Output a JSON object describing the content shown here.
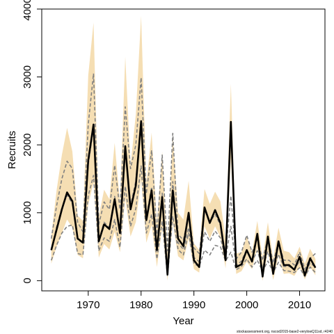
{
  "chart_data": {
    "type": "line",
    "xlabel": "Year",
    "ylabel": "Recruits",
    "xlim": [
      1961.2,
      2014.8
    ],
    "ylim": [
      -150,
      4000
    ],
    "xticks": [
      1970,
      1980,
      1990,
      2000,
      2010
    ],
    "yticks": [
      0,
      1000,
      2000,
      3000,
      4000
    ],
    "grid": false,
    "footnote": "stockassessment.org,  nscod2015-base2-verylowQ11sd, r4240",
    "colors": {
      "band": "#f5deb3",
      "main": "#000000",
      "dashed": "#808080"
    },
    "x": [
      1963,
      1964,
      1965,
      1966,
      1967,
      1968,
      1969,
      1970,
      1971,
      1972,
      1973,
      1974,
      1975,
      1976,
      1977,
      1978,
      1979,
      1980,
      1981,
      1982,
      1983,
      1984,
      1985,
      1986,
      1987,
      1988,
      1989,
      1990,
      1991,
      1992,
      1993,
      1994,
      1995,
      1996,
      1997,
      1998,
      1999,
      2000,
      2001,
      2002,
      2003,
      2004,
      2005,
      2006,
      2007,
      2008,
      2009,
      2010,
      2011,
      2012,
      2013
    ],
    "series": [
      {
        "role": "estimate",
        "style": "solid-thick",
        "values": [
          450,
          750,
          1050,
          1300,
          1170,
          620,
          560,
          1770,
          2300,
          580,
          830,
          760,
          1200,
          700,
          1980,
          1050,
          1400,
          2350,
          890,
          1330,
          450,
          1230,
          90,
          1330,
          620,
          510,
          1000,
          300,
          200,
          1080,
          850,
          1040,
          850,
          300,
          2340,
          200,
          240,
          450,
          280,
          690,
          60,
          650,
          100,
          580,
          230,
          230,
          160,
          350,
          80,
          330,
          190
        ]
      },
      {
        "role": "confidence-band",
        "style": "fill",
        "upper": [
          650,
          1330,
          1850,
          2250,
          1900,
          960,
          880,
          3020,
          3800,
          950,
          1340,
          1200,
          2030,
          1150,
          3300,
          1690,
          2450,
          3900,
          1430,
          2180,
          850,
          1900,
          400,
          2140,
          1000,
          900,
          1470,
          550,
          450,
          1350,
          1130,
          1310,
          1170,
          620,
          2900,
          400,
          420,
          650,
          420,
          880,
          340,
          860,
          320,
          780,
          440,
          420,
          330,
          500,
          250,
          470,
          320
        ],
        "lower": [
          250,
          500,
          700,
          900,
          780,
          380,
          330,
          1120,
          1450,
          340,
          540,
          460,
          720,
          420,
          1210,
          650,
          860,
          1500,
          560,
          820,
          200,
          780,
          0,
          860,
          360,
          300,
          620,
          170,
          120,
          800,
          620,
          800,
          640,
          180,
          1800,
          100,
          140,
          280,
          170,
          480,
          0,
          430,
          10,
          360,
          100,
          110,
          70,
          200,
          20,
          200,
          80
        ]
      },
      {
        "role": "dashed-upper",
        "style": "dashed",
        "values": [
          620,
          1100,
          1500,
          1760,
          1650,
          860,
          720,
          2300,
          3050,
          830,
          1160,
          1050,
          1700,
          1050,
          2560,
          1650,
          2000,
          2990,
          1280,
          1920,
          680,
          1850,
          440,
          2170,
          680,
          600,
          950,
          480,
          400,
          1050,
          850,
          980,
          820,
          400,
          1250,
          320,
          420,
          670,
          420,
          620,
          300,
          640,
          260,
          580,
          300,
          300,
          230,
          420,
          170,
          330,
          400
        ]
      },
      {
        "role": "dashed-lower",
        "style": "dashed",
        "values": [
          300,
          520,
          700,
          800,
          820,
          400,
          380,
          1250,
          1550,
          440,
          630,
          580,
          900,
          490,
          1390,
          800,
          1060,
          1690,
          700,
          980,
          320,
          880,
          60,
          950,
          460,
          380,
          700,
          250,
          210,
          450,
          380,
          520,
          500,
          290,
          420,
          160,
          210,
          320,
          200,
          300,
          140,
          290,
          120,
          270,
          150,
          140,
          120,
          190,
          60,
          200,
          120
        ]
      },
      {
        "role": "dashed-middle",
        "style": "dashed",
        "values": [
          450,
          790,
          1070,
          1260,
          1140,
          610,
          550,
          1710,
          2250,
          600,
          860,
          780,
          1240,
          720,
          1920,
          1100,
          1470,
          2280,
          930,
          1380,
          470,
          1290,
          180,
          1460,
          560,
          460,
          780,
          340,
          280,
          720,
          580,
          730,
          630,
          330,
          800,
          220,
          290,
          460,
          280,
          440,
          190,
          430,
          170,
          390,
          210,
          210,
          170,
          290,
          100,
          260,
          200
        ]
      }
    ]
  }
}
